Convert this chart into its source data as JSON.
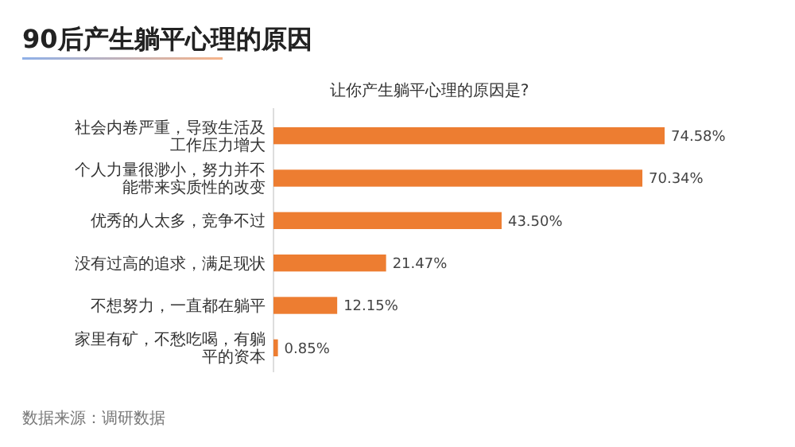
{
  "chart_data": {
    "type": "bar",
    "orientation": "horizontal",
    "title": "90后产生躺平心理的原因",
    "subtitle": "让你产生躺平心理的原因是?",
    "categories": [
      "社会内卷严重，导致生活及工作压力增大",
      "个人力量很渺小，努力并不能带来实质性的改变",
      "优秀的人太多，竞争不过",
      "没有过高的追求，满足现状",
      "不想努力，一直都在躺平",
      "家里有矿，不愁吃喝，有躺平的资本"
    ],
    "values": [
      74.58,
      70.34,
      43.5,
      21.47,
      12.15,
      0.85
    ],
    "value_labels": [
      "74.58%",
      "70.34%",
      "43.50%",
      "21.47%",
      "12.15%",
      "0.85%"
    ],
    "color": "#ed7d31",
    "annotations": [
      "数据来源：调研数据"
    ]
  }
}
